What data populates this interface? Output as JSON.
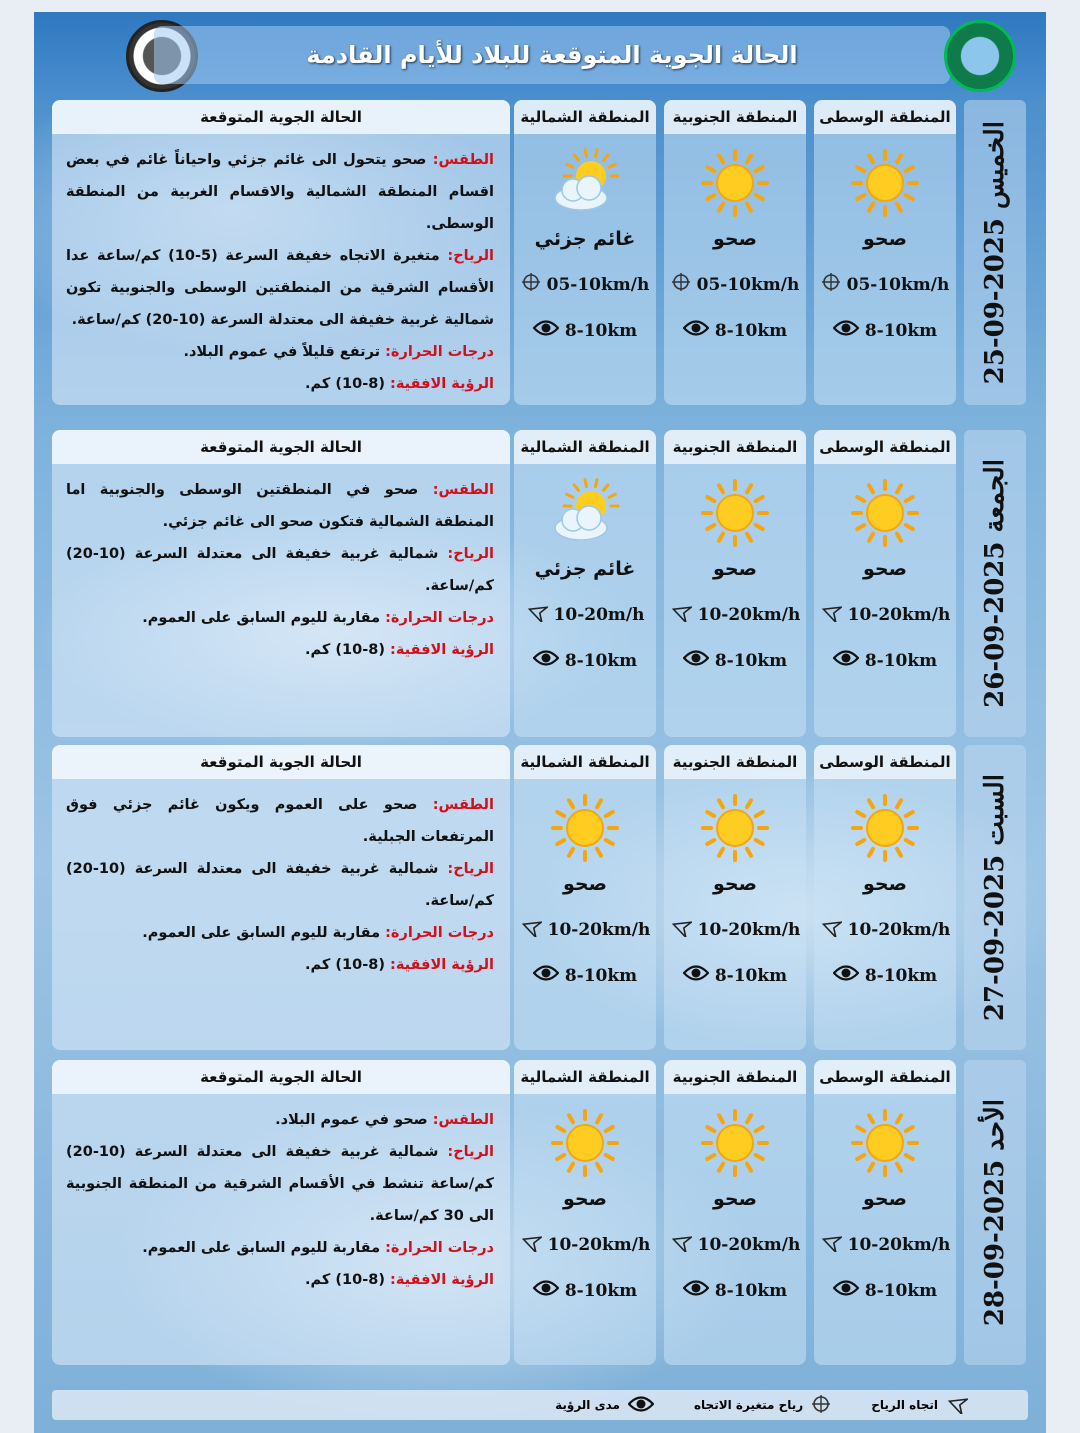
{
  "title": "الحالة الجوية المتوقعة للبلاد للأيام القادمة",
  "panel_title": "الحالة الجوية المتوقعة",
  "regions": [
    "المنطقة الوسطى",
    "المنطقة الجنوبية",
    "المنطقة الشمالية"
  ],
  "days": [
    {
      "date": "الخميس 2025-09-25",
      "wind_icon": "variable-wind-icon",
      "cards": [
        {
          "icon": "sun-icon",
          "cond": "صحو",
          "wind": "05-10km/h",
          "vis": "8-10km"
        },
        {
          "icon": "sun-icon",
          "cond": "صحو",
          "wind": "05-10km/h",
          "vis": "8-10km"
        },
        {
          "icon": "partly-cloudy-icon",
          "cond": "غائم جزئي",
          "wind": "05-10km/h",
          "vis": "8-10km"
        }
      ],
      "text": [
        {
          "label": "الطقس:",
          "body": "صحو يتحول الى غائم جزئي واحياناً غائم في بعض اقسام المنطقة الشمالية والاقسام الغربية من المنطقة الوسطى."
        },
        {
          "label": "الرياح:",
          "body": "متغيرة الاتجاه خفيفة السرعة (5-10) كم/ساعة عدا الأقسام الشرقية من المنطقتين الوسطى والجنوبية تكون شمالية غربية خفيفة الى معتدلة السرعة (10-20) كم/ساعة."
        },
        {
          "label": "درجات الحرارة:",
          "body": "ترتفع قليلاً في عموم البلاد."
        },
        {
          "label": "الرؤية الافقية:",
          "body": "(8-10) كم."
        }
      ]
    },
    {
      "date": "الجمعة 2025-09-26",
      "wind_icon": "wind-direction-icon",
      "cards": [
        {
          "icon": "sun-icon",
          "cond": "صحو",
          "wind": "10-20km/h",
          "vis": "8-10km"
        },
        {
          "icon": "sun-icon",
          "cond": "صحو",
          "wind": "10-20km/h",
          "vis": "8-10km"
        },
        {
          "icon": "partly-cloudy-icon",
          "cond": "غائم جزئي",
          "wind": "10-20m/h",
          "vis": "8-10km"
        }
      ],
      "text": [
        {
          "label": "الطقس:",
          "body": "صحو في المنطقتين الوسطى والجنوبية اما المنطقة الشمالية فتكون صحو الى غائم جزئي."
        },
        {
          "label": "الرياح:",
          "body": "شمالية غربية خفيفة الى معتدلة السرعة (10-20) كم/ساعة."
        },
        {
          "label": "درجات الحرارة:",
          "body": "مقاربة لليوم السابق على العموم."
        },
        {
          "label": "الرؤية الافقية:",
          "body": "(8-10) كم."
        }
      ]
    },
    {
      "date": "السبت 2025-09-27",
      "wind_icon": "wind-direction-icon",
      "cards": [
        {
          "icon": "sun-icon",
          "cond": "صحو",
          "wind": "10-20km/h",
          "vis": "8-10km"
        },
        {
          "icon": "sun-icon",
          "cond": "صحو",
          "wind": "10-20km/h",
          "vis": "8-10km"
        },
        {
          "icon": "sun-icon",
          "cond": "صحو",
          "wind": "10-20km/h",
          "vis": "8-10km"
        }
      ],
      "text": [
        {
          "label": "الطقس:",
          "body": "صحو على العموم ويكون غائم جزئي فوق المرتفعات الجبلية."
        },
        {
          "label": "الرياح:",
          "body": "شمالية غربية خفيفة الى معتدلة السرعة (10-20) كم/ساعة."
        },
        {
          "label": "درجات الحرارة:",
          "body": "مقاربة لليوم السابق على العموم."
        },
        {
          "label": "الرؤية الافقية:",
          "body": "(8-10) كم."
        }
      ]
    },
    {
      "date": "الأحد 2025-09-28",
      "wind_icon": "wind-direction-icon",
      "cards": [
        {
          "icon": "sun-icon",
          "cond": "صحو",
          "wind": "10-20km/h",
          "vis": "8-10km"
        },
        {
          "icon": "sun-icon",
          "cond": "صحو",
          "wind": "10-20km/h",
          "vis": "8-10km"
        },
        {
          "icon": "sun-icon",
          "cond": "صحو",
          "wind": "10-20km/h",
          "vis": "8-10km"
        }
      ],
      "text": [
        {
          "label": "الطقس:",
          "body": "صحو في عموم البلاد."
        },
        {
          "label": "الرياح:",
          "body": "شمالية غربية خفيفة الى معتدلة السرعة (10-20) كم/ساعة تنشط في الأقسام الشرقية من المنطقة الجنوبية الى 30 كم/ساعة."
        },
        {
          "label": "درجات الحرارة:",
          "body": "مقاربة لليوم السابق على العموم."
        },
        {
          "label": "الرؤية الافقية:",
          "body": "(8-10) كم."
        }
      ]
    }
  ],
  "legend": {
    "wind_direction": "اتجاه الرياح",
    "variable_wind": "رياح متغيرة الاتجاه",
    "visibility": "مدى الرؤية"
  },
  "colors": {
    "label_red": "#d0111b",
    "header_blue": "#2f78c0"
  }
}
